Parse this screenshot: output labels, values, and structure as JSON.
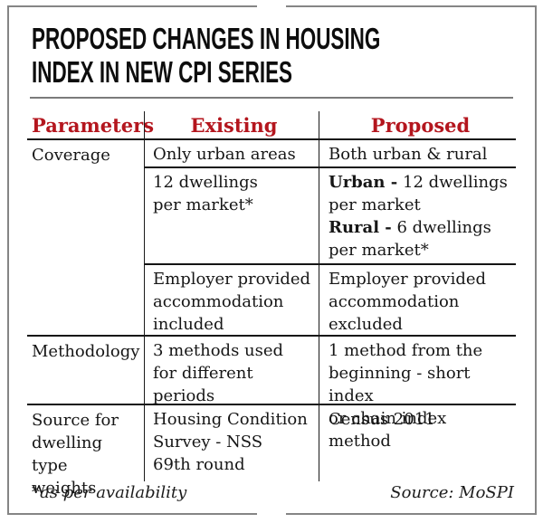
{
  "title": {
    "line1": "PROPOSED CHANGES IN HOUSING",
    "line2": "INDEX IN NEW CPI SERIES"
  },
  "colors": {
    "accent_red": "#b4161e",
    "text_black": "#161616",
    "table_line": "#1a1a1a",
    "frame_gray": "#858585"
  },
  "chart_data": {
    "type": "table",
    "title": "PROPOSED CHANGES IN HOUSING INDEX IN NEW CPI SERIES",
    "columns": [
      "Parameters",
      "Existing",
      "Proposed"
    ],
    "rows": [
      [
        "Coverage",
        "Only urban areas",
        "Both urban & rural"
      ],
      [
        "Coverage",
        "12 dwellings per market*",
        "Urban - 12 dwellings per market; Rural - 6 dwellings per market*"
      ],
      [
        "Coverage",
        "Employer provided accommodation included",
        "Employer provided accommodation excluded"
      ],
      [
        "Methodology",
        "3 methods used for different periods",
        "1 method from the beginning - short index or chain index method"
      ],
      [
        "Source for dwelling type weights",
        "Housing Condition Survey - NSS 69th round",
        "Census 2011"
      ]
    ],
    "footnote": "*as per availability",
    "source": "Source: MoSPI"
  },
  "table": {
    "headers": {
      "parameters": "Parameters",
      "existing": "Existing",
      "proposed": "Proposed"
    },
    "coverage": {
      "label": "Coverage",
      "row1": {
        "existing": "Only urban areas",
        "proposed": "Both urban & rural"
      },
      "row2": {
        "existing": [
          "12 dwellings",
          "per market*"
        ],
        "proposed": [
          {
            "bold": "Urban -",
            "text": " 12 dwellings"
          },
          {
            "bold": "",
            "text": "per market"
          },
          {
            "bold": "Rural -",
            "text": " 6 dwellings"
          },
          {
            "bold": "",
            "text": "per market*"
          }
        ]
      },
      "row3": {
        "existing": [
          "Employer provided",
          "accommodation",
          "included"
        ],
        "proposed": [
          "Employer provided",
          "accommodation",
          "excluded"
        ]
      }
    },
    "methodology": {
      "label": "Methodology",
      "existing": [
        "3 methods used",
        "for different",
        "periods"
      ],
      "proposed": [
        "1 method from the",
        "beginning - short index",
        "or chain index method"
      ]
    },
    "source_weights": {
      "label": [
        "Source for",
        "dwelling type",
        "weights"
      ],
      "existing": [
        "Housing Condition",
        "Survey - NSS",
        "69th round"
      ],
      "proposed": "Census 2011"
    }
  },
  "footer": {
    "footnote": "*as per availability",
    "source": "Source: MoSPI"
  }
}
